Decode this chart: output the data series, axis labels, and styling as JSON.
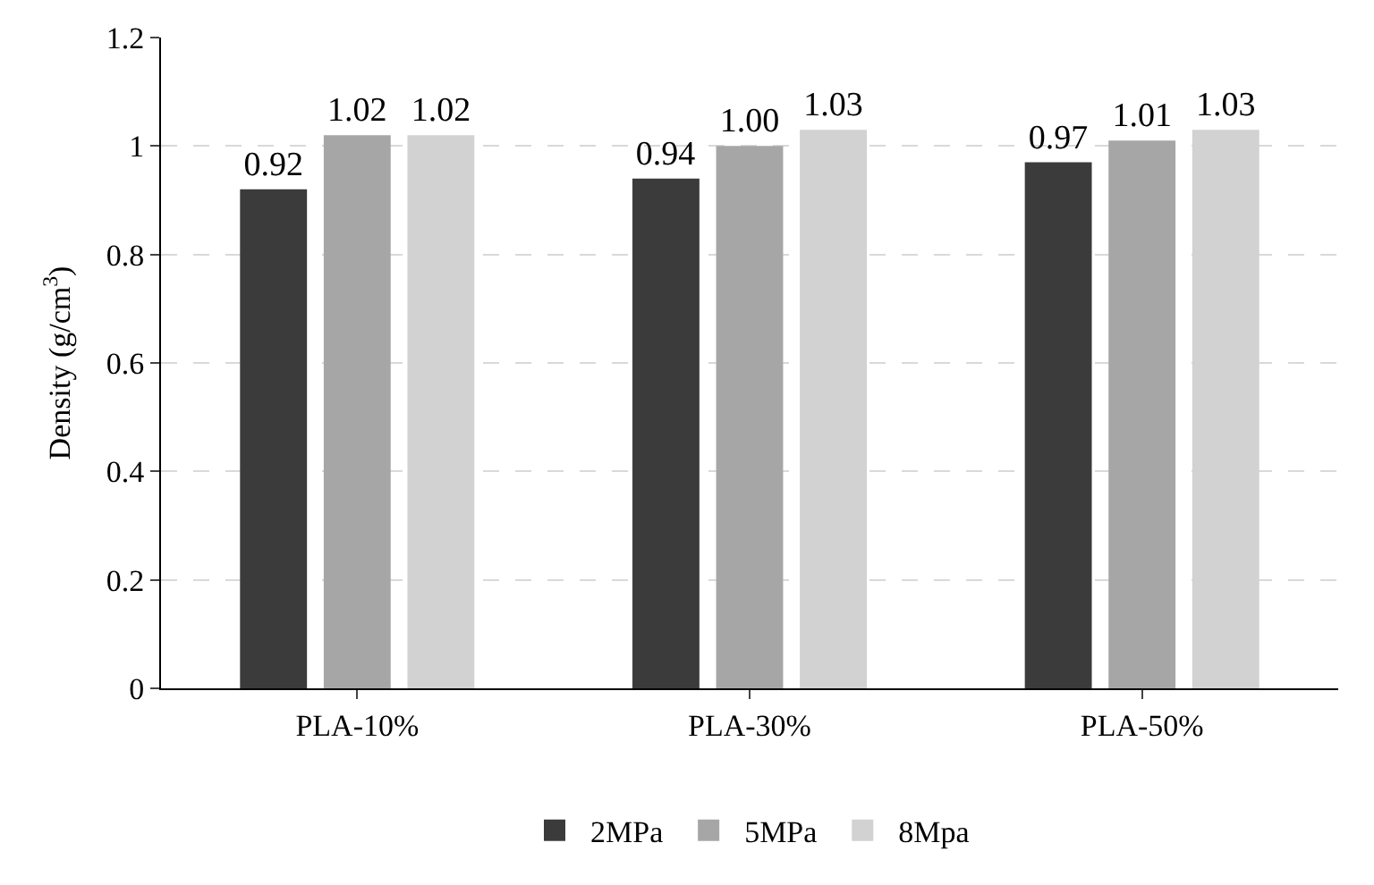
{
  "chart_data": {
    "type": "bar",
    "ylabel": "Density (g/cm$^{3}$)",
    "categories": [
      "PLA-10%",
      "PLA-30%",
      "PLA-50%"
    ],
    "series": [
      {
        "name": "2MPa",
        "color": "#3b3b3b",
        "values": [
          0.92,
          0.94,
          0.97
        ],
        "value_labels": [
          "0.92",
          "0.94",
          "0.97"
        ]
      },
      {
        "name": "5MPa",
        "color": "#a6a6a6",
        "values": [
          1.02,
          1.0,
          1.01
        ],
        "value_labels": [
          "1.02",
          "1.00",
          "1.01"
        ]
      },
      {
        "name": "8Mpa",
        "color": "#d2d2d2",
        "values": [
          1.02,
          1.03,
          1.03
        ],
        "value_labels": [
          "1.02",
          "1.03",
          "1.03"
        ]
      }
    ],
    "ylim": [
      0,
      1.2
    ],
    "yticks": [
      0,
      0.2,
      0.4,
      0.6,
      0.8,
      1,
      1.2
    ],
    "grid": "y",
    "legend": "bottom"
  }
}
